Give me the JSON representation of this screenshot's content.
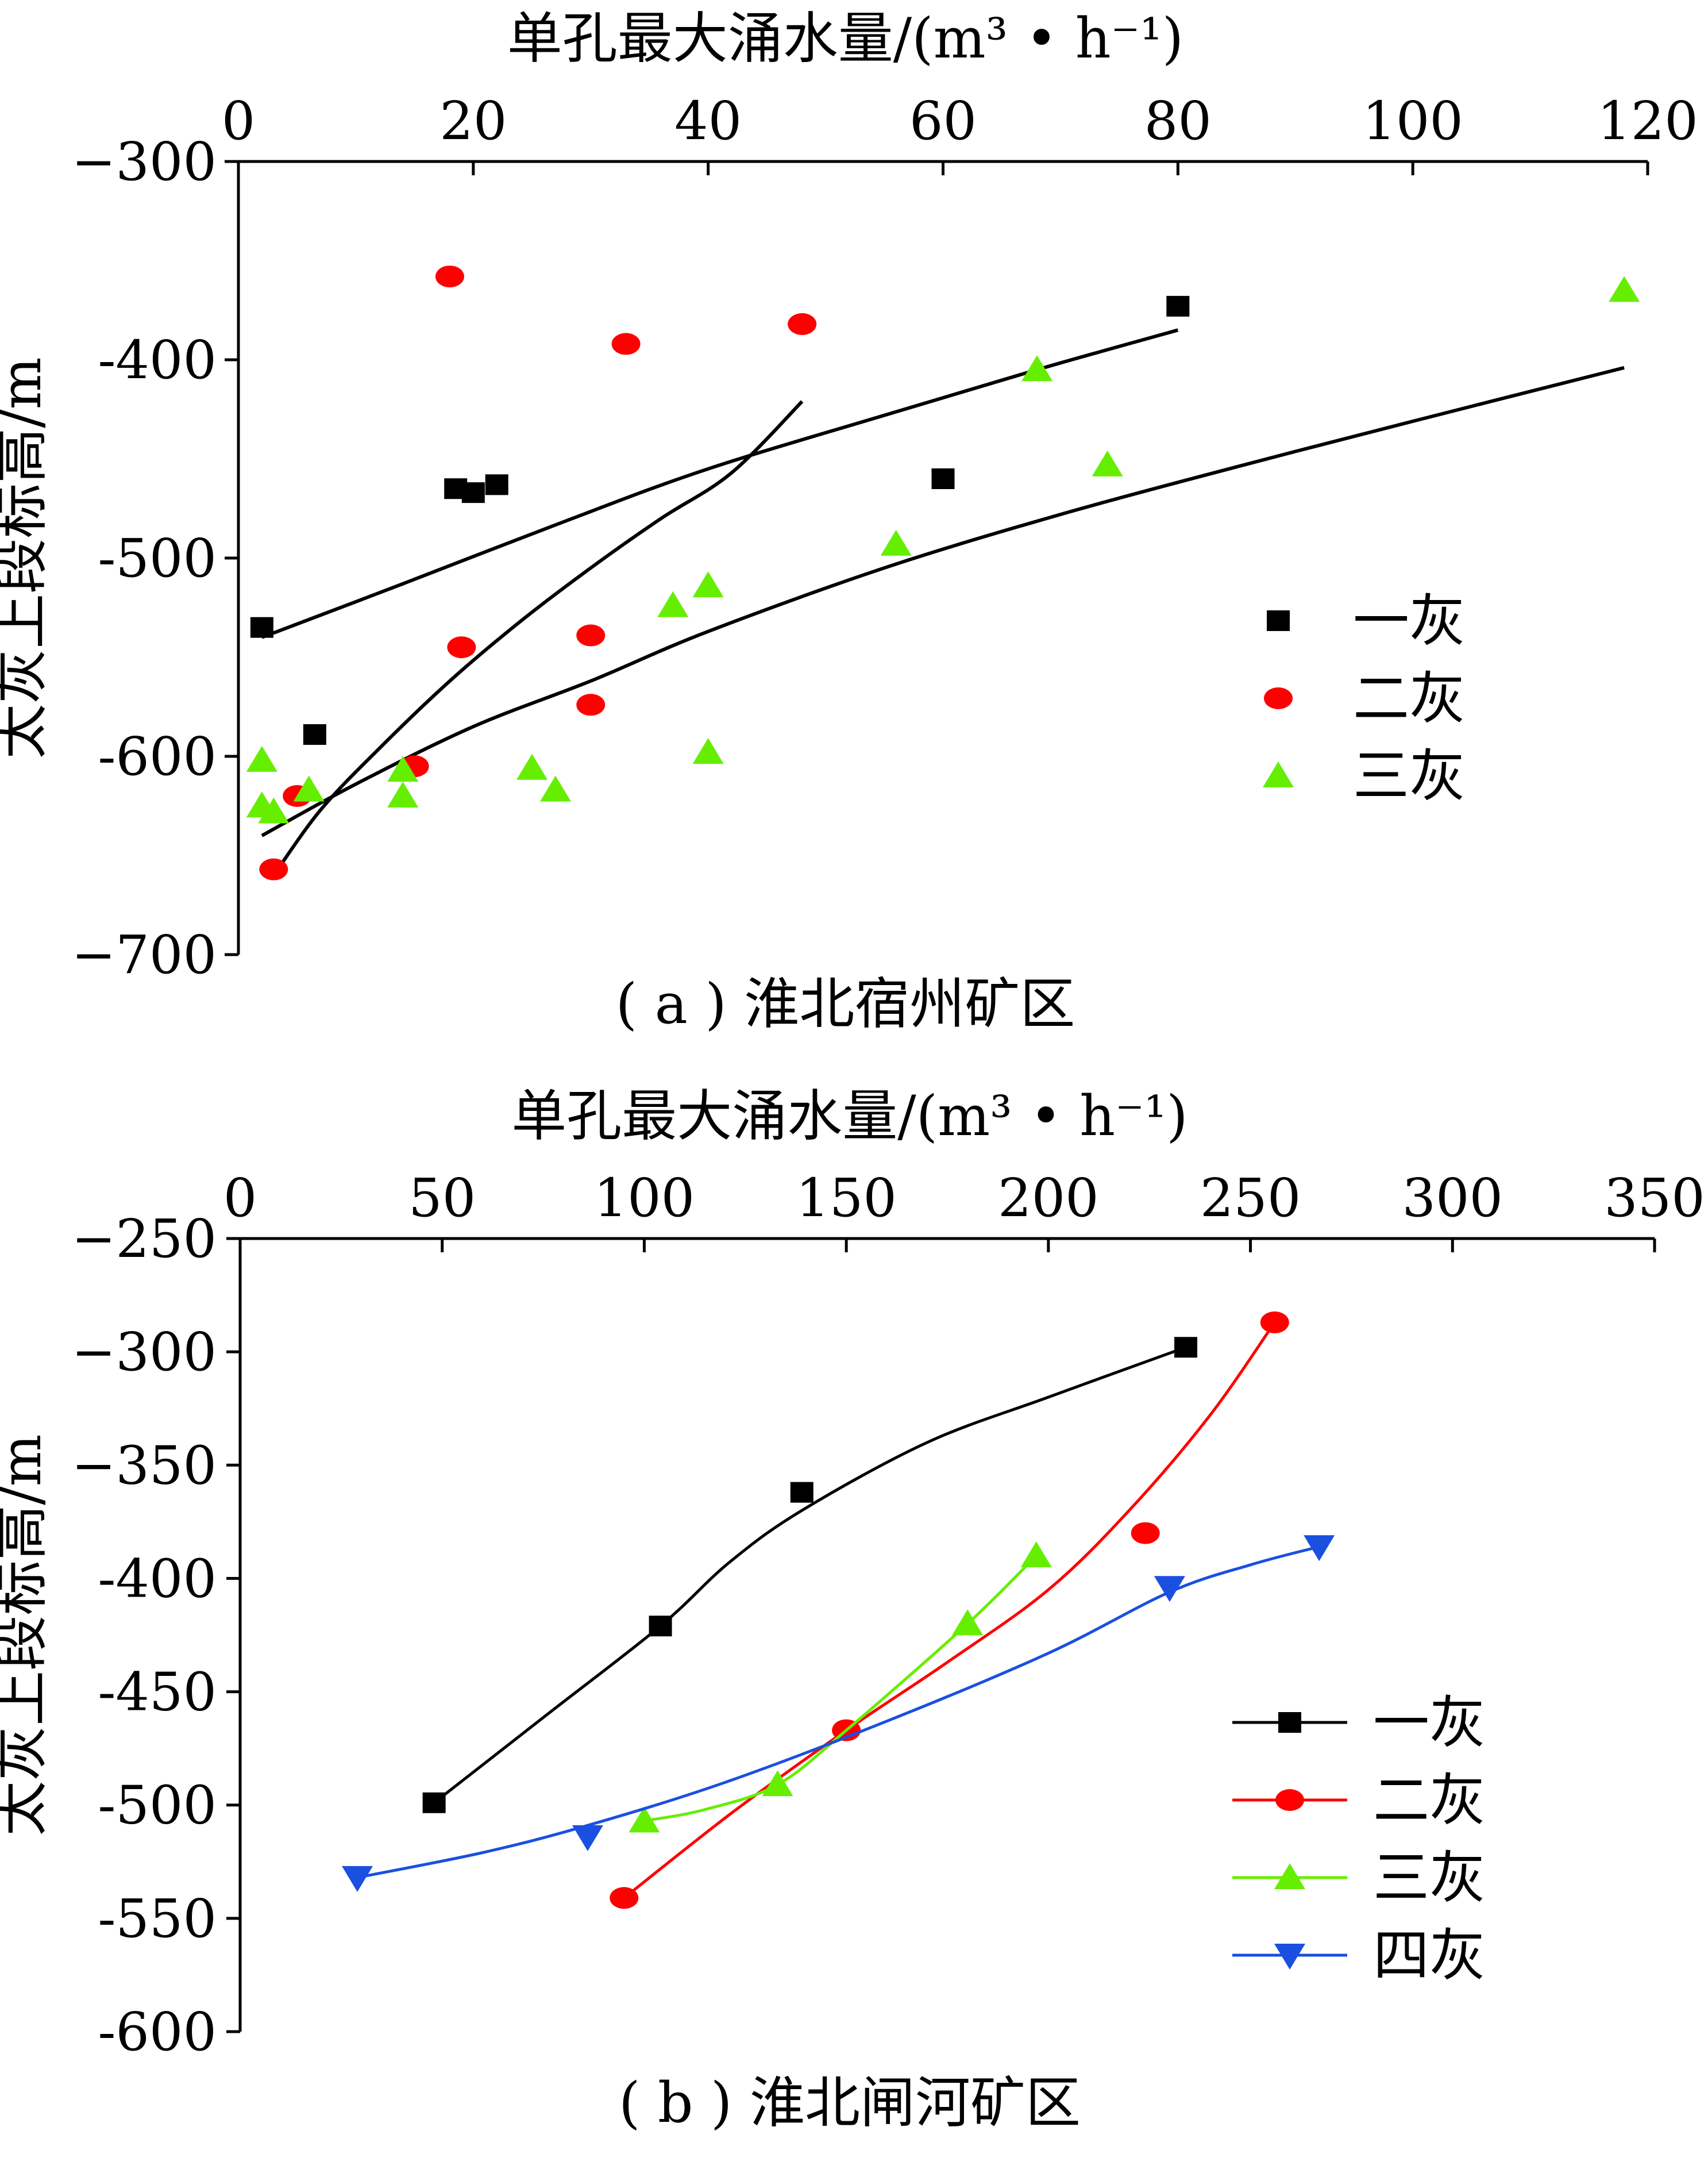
{
  "chart_data": [
    {
      "type": "scatter",
      "caption": "( a ) 淮北宿州矿区",
      "xlabel": "单孔最大涌水量/(m³ • h⁻¹)",
      "ylabel": "太灰上段标高/m",
      "x_position": "top",
      "xlim": [
        0,
        120
      ],
      "ylim": [
        -700,
        -300
      ],
      "xticks": [
        0,
        20,
        40,
        60,
        80,
        100,
        120
      ],
      "yticks": [
        -300,
        -400,
        -500,
        -600,
        -700
      ],
      "xtick_labels": [
        "0",
        "20",
        "40",
        "60",
        "80",
        "100",
        "120"
      ],
      "ytick_labels": [
        "−300",
        "-400",
        "-500",
        "-600",
        "−700"
      ],
      "legend_position": "right",
      "series": [
        {
          "name": "一灰",
          "color": "#000000",
          "marker": "square",
          "points": [
            [
              2,
              -535
            ],
            [
              6.5,
              -589
            ],
            [
              18.5,
              -465
            ],
            [
              20,
              -467
            ],
            [
              22,
              -463
            ],
            [
              60,
              -460
            ],
            [
              80,
              -373
            ]
          ]
        },
        {
          "name": "二灰",
          "color": "#ff0000",
          "marker": "circle",
          "points": [
            [
              18,
              -358
            ],
            [
              33,
              -392
            ],
            [
              48,
              -382
            ],
            [
              19,
              -545
            ],
            [
              30,
              -539
            ],
            [
              30,
              -574
            ],
            [
              15,
              -605
            ],
            [
              5,
              -620
            ],
            [
              3,
              -657
            ]
          ]
        },
        {
          "name": "三灰",
          "color": "#66ee00",
          "marker": "triangle-up",
          "points": [
            [
              2,
              -602
            ],
            [
              2,
              -625
            ],
            [
              3,
              -628
            ],
            [
              6,
              -617
            ],
            [
              14,
              -620
            ],
            [
              14,
              -607
            ],
            [
              25,
              -606
            ],
            [
              27,
              -617
            ],
            [
              37,
              -524
            ],
            [
              40,
              -514
            ],
            [
              40,
              -598
            ],
            [
              56,
              -493
            ],
            [
              68,
              -405
            ],
            [
              74,
              -453
            ],
            [
              118,
              -365
            ]
          ]
        }
      ],
      "fits": [
        {
          "color": "#000000",
          "points": [
            [
              2,
              -540
            ],
            [
              14,
              -513
            ],
            [
              28,
              -481
            ],
            [
              40,
              -455
            ],
            [
              55,
              -428
            ],
            [
              68,
              -405
            ],
            [
              80,
              -385
            ]
          ]
        },
        {
          "color": "#000000",
          "points": [
            [
              3,
              -660
            ],
            [
              7,
              -627
            ],
            [
              12,
              -596
            ],
            [
              18,
              -562
            ],
            [
              24,
              -532
            ],
            [
              30,
              -505
            ],
            [
              36,
              -480
            ],
            [
              42,
              -457
            ],
            [
              48,
              -421
            ]
          ]
        },
        {
          "color": "#000000",
          "points": [
            [
              2,
              -640
            ],
            [
              10,
              -614
            ],
            [
              20,
              -585
            ],
            [
              30,
              -562
            ],
            [
              40,
              -537
            ],
            [
              55,
              -505
            ],
            [
              70,
              -478
            ],
            [
              85,
              -454
            ],
            [
              100,
              -431
            ],
            [
              118,
              -404
            ]
          ]
        }
      ]
    },
    {
      "type": "line",
      "caption": "( b ) 淮北闸河矿区",
      "xlabel": "单孔最大涌水量/(m³ • h⁻¹)",
      "ylabel": "太灰上段标高/m",
      "x_position": "top",
      "xlim": [
        0,
        350
      ],
      "ylim": [
        -600,
        -250
      ],
      "xticks": [
        0,
        50,
        100,
        150,
        200,
        250,
        300,
        350
      ],
      "yticks": [
        -250,
        -300,
        -350,
        -400,
        -450,
        -500,
        -550,
        -600
      ],
      "xtick_labels": [
        "0",
        "50",
        "100",
        "150",
        "200",
        "250",
        "300",
        "350"
      ],
      "ytick_labels": [
        "−250",
        "−300",
        "−350",
        "-400",
        "-450",
        "-500",
        "-550",
        "-600"
      ],
      "legend_position": "right",
      "series": [
        {
          "name": "一灰",
          "color": "#000000",
          "marker": "square",
          "points": [
            [
              48,
              -499
            ],
            [
              104,
              -421
            ],
            [
              139,
              -362
            ],
            [
              234,
              -298
            ]
          ],
          "curve": [
            [
              48,
              -499
            ],
            [
              76,
              -460
            ],
            [
              104,
              -421
            ],
            [
              121,
              -393
            ],
            [
              139,
              -370
            ],
            [
              170,
              -340
            ],
            [
              200,
              -320
            ],
            [
              234,
              -298
            ]
          ]
        },
        {
          "name": "二灰",
          "color": "#ff0000",
          "marker": "circle",
          "points": [
            [
              95,
              -541
            ],
            [
              150,
              -467
            ],
            [
              224,
              -380
            ],
            [
              256,
              -287
            ]
          ],
          "curve": [
            [
              95,
              -541
            ],
            [
              122,
              -503
            ],
            [
              150,
              -467
            ],
            [
              175,
              -437
            ],
            [
              200,
              -405
            ],
            [
              220,
              -370
            ],
            [
              240,
              -328
            ],
            [
              256,
              -287
            ]
          ]
        },
        {
          "name": "三灰",
          "color": "#66ee00",
          "marker": "triangle-up",
          "points": [
            [
              100,
              -507
            ],
            [
              133,
              -491
            ],
            [
              180,
              -420
            ],
            [
              197,
              -390
            ]
          ],
          "curve": [
            [
              100,
              -507
            ],
            [
              115,
              -502
            ],
            [
              133,
              -491
            ],
            [
              150,
              -467
            ],
            [
              180,
              -420
            ],
            [
              197,
              -390
            ]
          ]
        },
        {
          "name": "四灰",
          "color": "#1a4fe0",
          "marker": "triangle-down",
          "points": [
            [
              29,
              -532
            ],
            [
              86,
              -514
            ],
            [
              230,
              -404
            ],
            [
              267,
              -386
            ]
          ],
          "curve": [
            [
              29,
              -532
            ],
            [
              60,
              -521
            ],
            [
              86,
              -509
            ],
            [
              120,
              -490
            ],
            [
              160,
              -463
            ],
            [
              200,
              -433
            ],
            [
              230,
              -406
            ],
            [
              250,
              -394
            ],
            [
              267,
              -386
            ]
          ]
        }
      ]
    }
  ]
}
